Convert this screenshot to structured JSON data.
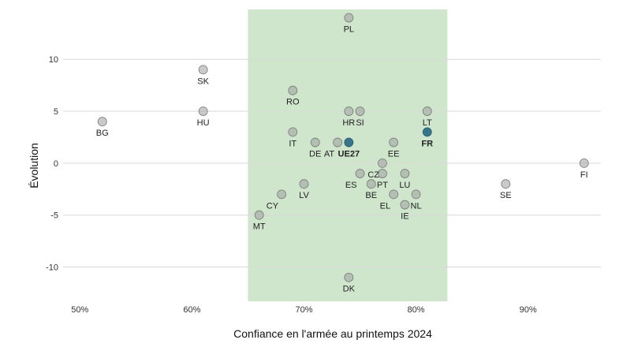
{
  "chart_data": {
    "type": "scatter",
    "title": "",
    "xlabel": "Confiance en l'armée au printemps 2024",
    "ylabel": "Évolution",
    "xlim": [
      0.485,
      0.965
    ],
    "ylim": [
      -13.3,
      14.8
    ],
    "x_ticks": [
      {
        "value": 0.5,
        "label": "50%"
      },
      {
        "value": 0.6,
        "label": "60%"
      },
      {
        "value": 0.7,
        "label": "70%"
      },
      {
        "value": 0.8,
        "label": "80%"
      },
      {
        "value": 0.9,
        "label": "90%"
      }
    ],
    "y_ticks": [
      {
        "value": 10,
        "label": "10"
      },
      {
        "value": 5,
        "label": "5"
      },
      {
        "value": 0,
        "label": "0"
      },
      {
        "value": -5,
        "label": "-5"
      },
      {
        "value": -10,
        "label": "-10"
      }
    ],
    "grid": "horizontal",
    "shaded_band": {
      "x_from": 0.65,
      "x_to": 0.828,
      "color": "#cfe6cc"
    },
    "marker_color": "#9e9e9e",
    "highlight_color": "#1f5f7a",
    "points": [
      {
        "label": "PL",
        "x": 0.74,
        "y": 14,
        "bold": false,
        "pos": "below"
      },
      {
        "label": "SK",
        "x": 0.61,
        "y": 9,
        "bold": false,
        "pos": "below"
      },
      {
        "label": "RO",
        "x": 0.69,
        "y": 7,
        "bold": false,
        "pos": "below"
      },
      {
        "label": "BG",
        "x": 0.52,
        "y": 4,
        "bold": false,
        "pos": "below"
      },
      {
        "label": "HU",
        "x": 0.61,
        "y": 5,
        "bold": false,
        "pos": "below"
      },
      {
        "label": "HR",
        "x": 0.74,
        "y": 5,
        "bold": false,
        "pos": "below"
      },
      {
        "label": "SI",
        "x": 0.75,
        "y": 5,
        "bold": false,
        "pos": "below"
      },
      {
        "label": "LT",
        "x": 0.81,
        "y": 5,
        "bold": false,
        "pos": "below"
      },
      {
        "label": "IT",
        "x": 0.69,
        "y": 3,
        "bold": false,
        "pos": "below"
      },
      {
        "label": "FR",
        "x": 0.81,
        "y": 3,
        "bold": true,
        "pos": "below"
      },
      {
        "label": "DE",
        "x": 0.71,
        "y": 2,
        "bold": false,
        "pos": "below"
      },
      {
        "label": "AT",
        "x": 0.73,
        "y": 2,
        "bold": false,
        "pos": "belowleft"
      },
      {
        "label": "UE27",
        "x": 0.74,
        "y": 2,
        "bold": true,
        "pos": "below"
      },
      {
        "label": "EE",
        "x": 0.78,
        "y": 2,
        "bold": false,
        "pos": "below"
      },
      {
        "label": "FI",
        "x": 0.95,
        "y": 0,
        "bold": false,
        "pos": "below"
      },
      {
        "label": "CZ",
        "x": 0.77,
        "y": 0,
        "bold": false,
        "pos": "belowleft"
      },
      {
        "label": "ES",
        "x": 0.75,
        "y": -1,
        "bold": false,
        "pos": "belowleft"
      },
      {
        "label": "PT",
        "x": 0.77,
        "y": -1,
        "bold": false,
        "pos": "below"
      },
      {
        "label": "LU",
        "x": 0.79,
        "y": -1,
        "bold": false,
        "pos": "below"
      },
      {
        "label": "SE",
        "x": 0.88,
        "y": -2,
        "bold": false,
        "pos": "below"
      },
      {
        "label": "BE",
        "x": 0.76,
        "y": -2,
        "bold": false,
        "pos": "below"
      },
      {
        "label": "LV",
        "x": 0.7,
        "y": -2,
        "bold": false,
        "pos": "below"
      },
      {
        "label": "EL",
        "x": 0.78,
        "y": -3,
        "bold": false,
        "pos": "belowleft"
      },
      {
        "label": "NL",
        "x": 0.8,
        "y": -3,
        "bold": false,
        "pos": "below"
      },
      {
        "label": "CY",
        "x": 0.68,
        "y": -3,
        "bold": false,
        "pos": "belowleft"
      },
      {
        "label": "IE",
        "x": 0.79,
        "y": -4,
        "bold": false,
        "pos": "below"
      },
      {
        "label": "MT",
        "x": 0.66,
        "y": -5,
        "bold": false,
        "pos": "below"
      },
      {
        "label": "DK",
        "x": 0.74,
        "y": -11,
        "bold": false,
        "pos": "below"
      }
    ]
  }
}
